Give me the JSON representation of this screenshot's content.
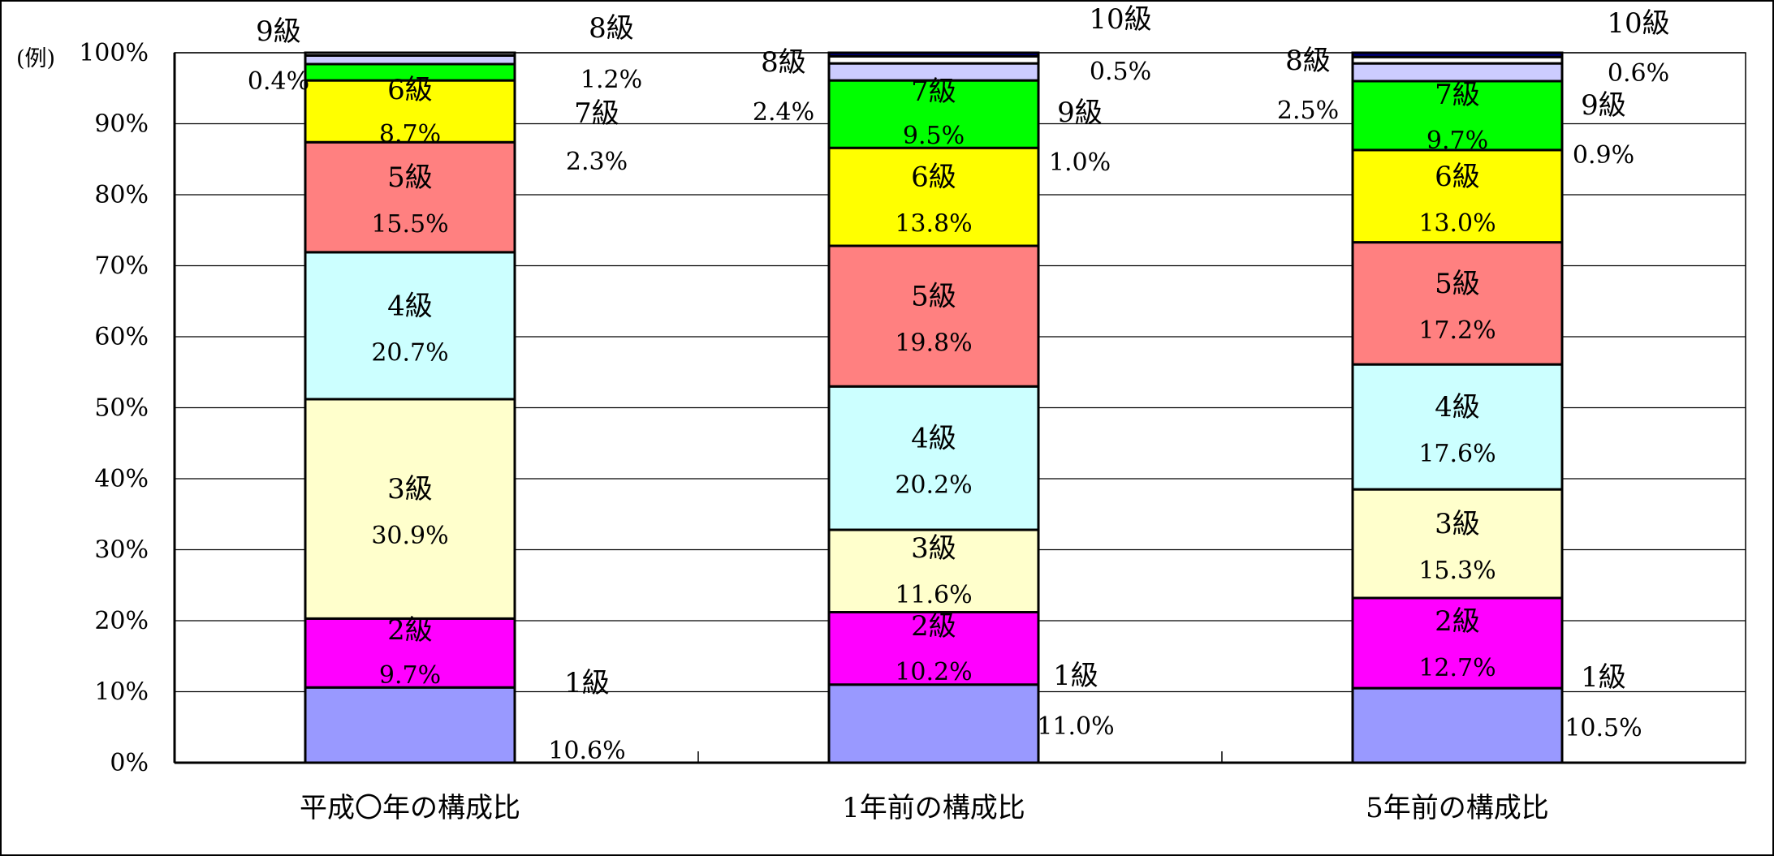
{
  "chart_data": {
    "type": "bar",
    "stacked": true,
    "normalized": true,
    "unit_label": "(例)",
    "categories": [
      "平成〇年の構成比",
      "1年前の構成比",
      "5年前の構成比"
    ],
    "ylim": [
      0,
      100
    ],
    "yticks": [
      "0%",
      "10%",
      "20%",
      "30%",
      "40%",
      "50%",
      "60%",
      "70%",
      "80%",
      "90%",
      "100%"
    ],
    "grid": true,
    "series": [
      {
        "name": "1級",
        "color": "#9999FF",
        "values": [
          10.6,
          11.0,
          10.5
        ],
        "labels": [
          "10.6%",
          "11.0%",
          "10.5%"
        ]
      },
      {
        "name": "2級",
        "color": "#FF00FF",
        "values": [
          9.7,
          10.2,
          12.7
        ],
        "labels": [
          "9.7%",
          "10.2%",
          "12.7%"
        ]
      },
      {
        "name": "3級",
        "color": "#FFFFCC",
        "values": [
          30.9,
          11.6,
          15.3
        ],
        "labels": [
          "30.9%",
          "11.6%",
          "15.3%"
        ]
      },
      {
        "name": "4級",
        "color": "#CCFFFF",
        "values": [
          20.7,
          20.2,
          17.6
        ],
        "labels": [
          "20.7%",
          "20.2%",
          "17.6%"
        ]
      },
      {
        "name": "5級",
        "color": "#FF8080",
        "values": [
          15.5,
          19.8,
          17.2
        ],
        "labels": [
          "15.5%",
          "19.8%",
          "17.2%"
        ]
      },
      {
        "name": "6級",
        "color": "#FFFF00",
        "values": [
          8.7,
          13.8,
          13.0
        ],
        "labels": [
          "8.7%",
          "13.8%",
          "13.0%"
        ]
      },
      {
        "name": "7級",
        "color": "#00FF00",
        "values": [
          2.3,
          9.5,
          9.7
        ],
        "labels": [
          "2.3%",
          "9.5%",
          "9.7%"
        ]
      },
      {
        "name": "8級",
        "color": "#CCCCFF",
        "values": [
          1.2,
          2.4,
          2.5
        ],
        "labels": [
          "1.2%",
          "2.4%",
          "2.5%"
        ]
      },
      {
        "name": "9級",
        "color": "#FFFFFF",
        "values": [
          0.4,
          1.0,
          0.9
        ],
        "labels": [
          "0.4%",
          "1.0%",
          "0.9%"
        ]
      },
      {
        "name": "10級",
        "color": "#000080",
        "values": [
          0,
          0.5,
          0.6
        ],
        "labels": [
          "",
          "0.5%",
          "0.6%"
        ]
      }
    ]
  }
}
